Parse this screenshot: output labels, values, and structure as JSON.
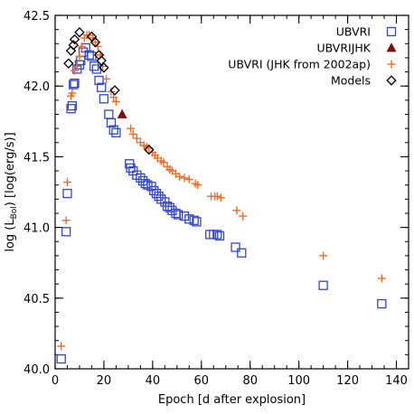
{
  "chart_data": {
    "type": "scatter",
    "xlabel": "Epoch [d after explosion]",
    "ylabel_prefix": "log (L",
    "ylabel_sub": "Bol",
    "ylabel_suffix": ") [log(erg/s)]",
    "xlim": [
      0,
      145
    ],
    "ylim": [
      40.0,
      42.5
    ],
    "x_major_ticks": [
      0,
      20,
      40,
      60,
      80,
      100,
      120,
      140
    ],
    "x_minor_step": 5,
    "y_major_ticks": [
      40.0,
      40.5,
      41.0,
      41.5,
      42.0,
      42.5
    ],
    "y_minor_step": 0.1,
    "x_tick_labels": [
      "0",
      "20",
      "40",
      "60",
      "80",
      "100",
      "120",
      "140"
    ],
    "y_tick_labels": [
      "40.0",
      "40.5",
      "41.0",
      "41.5",
      "42.0",
      "42.5"
    ],
    "grid": false,
    "legend_position": "top-right",
    "series": [
      {
        "name": "UBVRI",
        "marker": "open-square",
        "color": "#3246d2",
        "points": [
          [
            2.5,
            40.07
          ],
          [
            4.5,
            40.97
          ],
          [
            5.0,
            41.24
          ],
          [
            6.5,
            41.84
          ],
          [
            7.0,
            41.86
          ],
          [
            7.5,
            42.01
          ],
          [
            8.0,
            42.02
          ],
          [
            9.0,
            42.12
          ],
          [
            10.0,
            42.15
          ],
          [
            10.5,
            42.18
          ],
          [
            11.5,
            42.24
          ],
          [
            12.5,
            42.27
          ],
          [
            14.0,
            42.22
          ],
          [
            15.0,
            42.21
          ],
          [
            16.0,
            42.14
          ],
          [
            17.0,
            42.12
          ],
          [
            18.0,
            42.04
          ],
          [
            19.0,
            41.99
          ],
          [
            20.0,
            41.91
          ],
          [
            22.0,
            41.8
          ],
          [
            23.0,
            41.74
          ],
          [
            24.0,
            41.69
          ],
          [
            25.0,
            41.67
          ],
          [
            30.5,
            41.45
          ],
          [
            31.0,
            41.42
          ],
          [
            32.0,
            41.4
          ],
          [
            33.5,
            41.37
          ],
          [
            35.0,
            41.35
          ],
          [
            36.0,
            41.33
          ],
          [
            37.0,
            41.31
          ],
          [
            38.0,
            41.3
          ],
          [
            39.5,
            41.29
          ],
          [
            40.5,
            41.26
          ],
          [
            41.5,
            41.24
          ],
          [
            42.5,
            41.22
          ],
          [
            43.5,
            41.2
          ],
          [
            45.0,
            41.18
          ],
          [
            46.0,
            41.15
          ],
          [
            47.0,
            41.14
          ],
          [
            48.0,
            41.12
          ],
          [
            49.5,
            41.1
          ],
          [
            50.5,
            41.09
          ],
          [
            53.0,
            41.08
          ],
          [
            55.0,
            41.06
          ],
          [
            57.0,
            41.05
          ],
          [
            58.0,
            41.04
          ],
          [
            63.5,
            40.95
          ],
          [
            65.0,
            40.95
          ],
          [
            66.5,
            40.95
          ],
          [
            67.5,
            40.94
          ],
          [
            74.0,
            40.86
          ],
          [
            76.5,
            40.82
          ],
          [
            110.0,
            40.59
          ],
          [
            134.0,
            40.46
          ]
        ]
      },
      {
        "name": "UBVRIJHK",
        "marker": "filled-triangle",
        "color": "#7a1010",
        "points": [
          [
            27.5,
            41.8
          ]
        ]
      },
      {
        "name": "UBVRI (JHK from 2002ap)",
        "marker": "plus",
        "color": "#f06a28",
        "points": [
          [
            2.5,
            40.16
          ],
          [
            4.5,
            41.05
          ],
          [
            5.0,
            41.32
          ],
          [
            6.5,
            41.93
          ],
          [
            7.0,
            41.95
          ],
          [
            8.0,
            42.11
          ],
          [
            9.0,
            42.14
          ],
          [
            10.0,
            42.21
          ],
          [
            11.0,
            42.28
          ],
          [
            12.0,
            42.34
          ],
          [
            13.0,
            42.36
          ],
          [
            14.0,
            42.36
          ],
          [
            15.5,
            42.34
          ],
          [
            16.5,
            42.31
          ],
          [
            17.5,
            42.28
          ],
          [
            18.5,
            42.22
          ],
          [
            19.5,
            42.14
          ],
          [
            21.0,
            42.05
          ],
          [
            23.0,
            41.96
          ],
          [
            24.0,
            41.92
          ],
          [
            25.0,
            41.89
          ],
          [
            31.0,
            41.7
          ],
          [
            32.0,
            41.66
          ],
          [
            33.5,
            41.63
          ],
          [
            35.0,
            41.6
          ],
          [
            36.5,
            41.58
          ],
          [
            37.5,
            41.57
          ],
          [
            38.5,
            41.56
          ],
          [
            40.0,
            41.53
          ],
          [
            41.0,
            41.51
          ],
          [
            42.0,
            41.49
          ],
          [
            43.5,
            41.47
          ],
          [
            44.5,
            41.46
          ],
          [
            46.0,
            41.43
          ],
          [
            47.0,
            41.41
          ],
          [
            48.0,
            41.4
          ],
          [
            49.5,
            41.38
          ],
          [
            51.0,
            41.36
          ],
          [
            53.0,
            41.35
          ],
          [
            55.0,
            41.34
          ],
          [
            57.5,
            41.31
          ],
          [
            58.5,
            41.3
          ],
          [
            64.0,
            41.22
          ],
          [
            65.5,
            41.22
          ],
          [
            66.5,
            41.22
          ],
          [
            68.0,
            41.21
          ],
          [
            74.5,
            41.12
          ],
          [
            77.0,
            41.08
          ],
          [
            110.0,
            40.8
          ],
          [
            134.0,
            40.64
          ]
        ]
      },
      {
        "name": "Models",
        "marker": "open-diamond",
        "color": "#000000",
        "points": [
          [
            5.5,
            42.16
          ],
          [
            6.5,
            42.25
          ],
          [
            7.5,
            42.29
          ],
          [
            8.0,
            42.33
          ],
          [
            10.0,
            42.38
          ],
          [
            15.0,
            42.35
          ],
          [
            16.5,
            42.31
          ],
          [
            18.0,
            42.22
          ],
          [
            19.0,
            42.18
          ],
          [
            20.0,
            42.13
          ],
          [
            24.5,
            41.97
          ],
          [
            38.5,
            41.55
          ]
        ]
      }
    ]
  }
}
